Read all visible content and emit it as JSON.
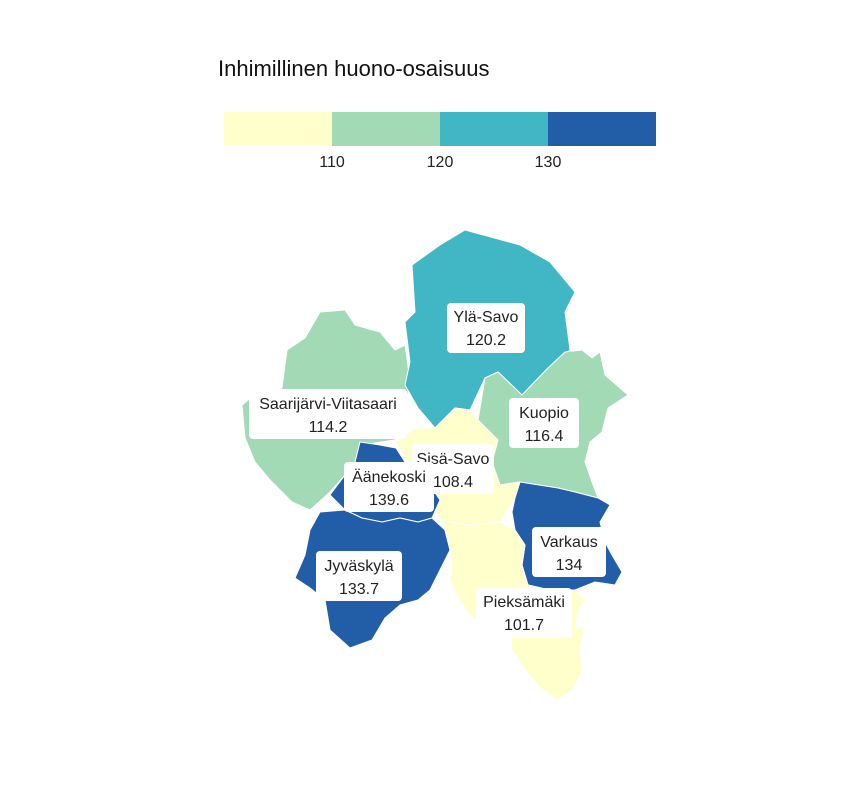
{
  "title": "Inhimillinen huono-osaisuus",
  "legend": {
    "colors": [
      "#ffffcc",
      "#a1dab4",
      "#41b6c4",
      "#225ea8"
    ],
    "breaks": [
      "110",
      "120",
      "130"
    ]
  },
  "regions": [
    {
      "name": "Ylä-Savo",
      "value": "120.2",
      "color": "#41b6c4"
    },
    {
      "name": "Saarijärvi-Viitasaari",
      "value": "114.2",
      "color": "#a1dab4"
    },
    {
      "name": "Kuopio",
      "value": "116.4",
      "color": "#a1dab4"
    },
    {
      "name": "Sisä-Savo",
      "value": "108.4",
      "color": "#ffffcc"
    },
    {
      "name": "Äänekoski",
      "value": "139.6",
      "color": "#225ea8"
    },
    {
      "name": "Varkaus",
      "value": "134",
      "color": "#225ea8"
    },
    {
      "name": "Jyväskylä",
      "value": "133.7",
      "color": "#225ea8"
    },
    {
      "name": "Pieksämäki",
      "value": "101.7",
      "color": "#ffffcc"
    }
  ]
}
